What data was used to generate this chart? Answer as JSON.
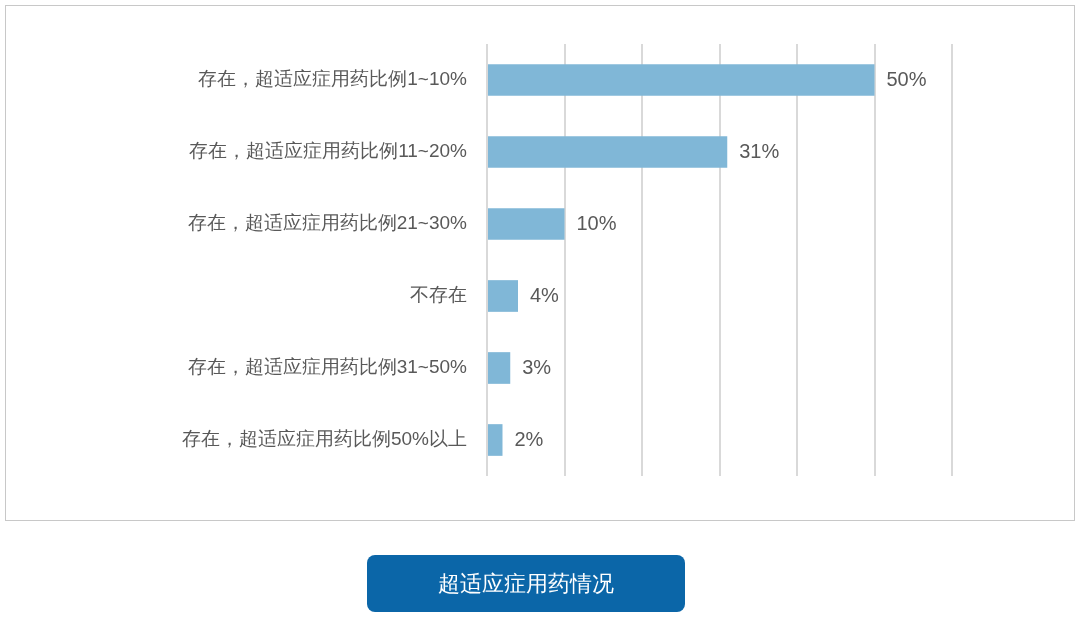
{
  "chart_data": {
    "type": "bar",
    "orientation": "horizontal",
    "title": "超适应症用药情况",
    "categories": [
      "存在，超适应症用药比例1~10%",
      "存在，超适应症用药比例11~20%",
      "存在，超适应症用药比例21~30%",
      "不存在",
      "存在，超适应症用药比例31~50%",
      "存在，超适应症用药比例50%以上"
    ],
    "values": [
      50,
      31,
      10,
      4,
      3,
      2
    ],
    "value_labels": [
      "50%",
      "31%",
      "10%",
      "4%",
      "3%",
      "2%"
    ],
    "color": "#80b7d7",
    "xlim": [
      0,
      60
    ],
    "xticks": [
      {
        "value": 0,
        "label": null
      },
      {
        "value": 10,
        "label": null
      },
      {
        "value": 20,
        "label": null
      },
      {
        "value": 30,
        "label": null
      },
      {
        "value": 40,
        "label": null
      },
      {
        "value": 50,
        "label": null
      },
      {
        "value": 60,
        "label": null
      }
    ],
    "grid": "x",
    "tick_labels": "y"
  }
}
